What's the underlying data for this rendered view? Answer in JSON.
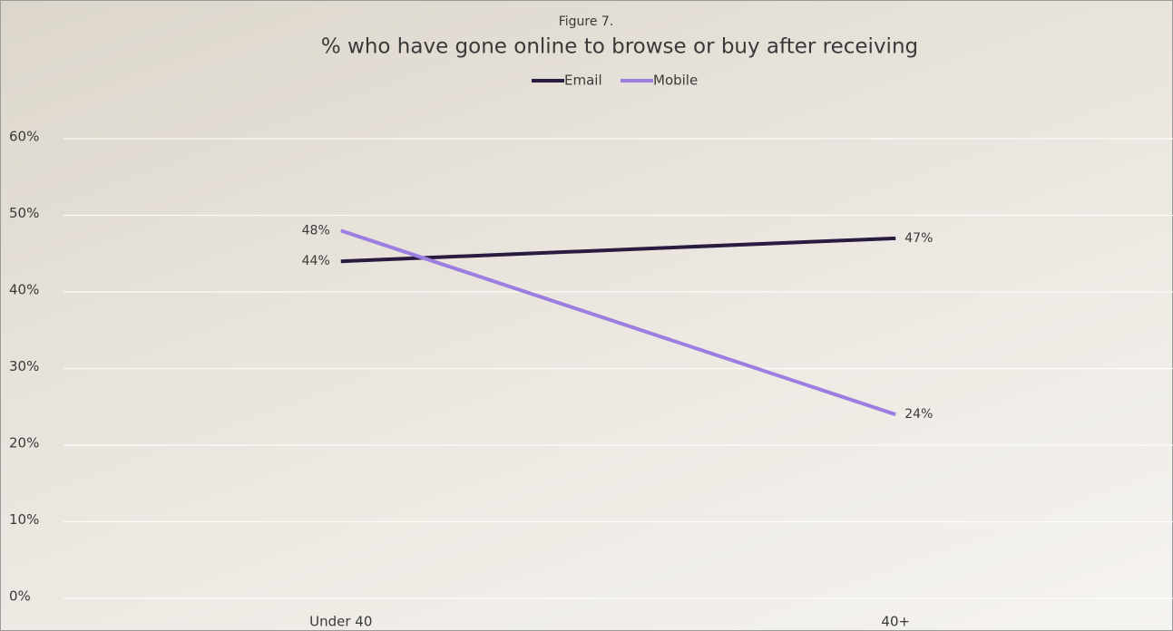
{
  "chart_data": {
    "type": "line",
    "subtitle": "Figure 7.",
    "title": "% who have gone online to browse or buy after receiving",
    "categories": [
      "Under 40",
      "40+"
    ],
    "series": [
      {
        "name": "Email",
        "color": "#2b1b40",
        "values": [
          44,
          47
        ],
        "value_labels": [
          "44%",
          "47%"
        ]
      },
      {
        "name": "Mobile",
        "color": "#9b7ee0",
        "values": [
          48,
          24
        ],
        "value_labels": [
          "48%",
          "24%"
        ]
      }
    ],
    "ylim": [
      0,
      60
    ],
    "yticks": [
      {
        "value": 0,
        "label": "0%"
      },
      {
        "value": 10,
        "label": "10%"
      },
      {
        "value": 20,
        "label": "20%"
      },
      {
        "value": 30,
        "label": "30%"
      },
      {
        "value": 40,
        "label": "40%"
      },
      {
        "value": 50,
        "label": "50%"
      },
      {
        "value": 60,
        "label": "60%"
      }
    ],
    "grid": true,
    "legend": "top"
  }
}
